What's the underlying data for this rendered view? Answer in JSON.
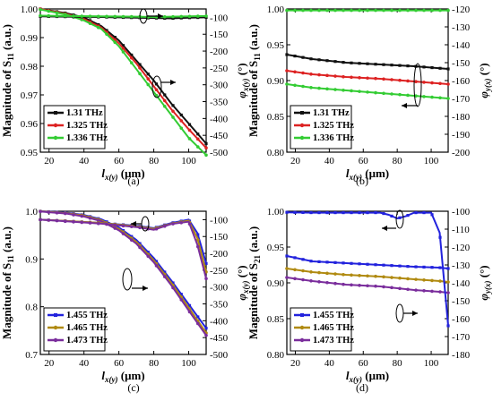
{
  "colors": {
    "black": "#111111",
    "red": "#dd2222",
    "green": "#33cc33",
    "blue": "#2222dd",
    "olive": "#b08a10",
    "purple": "#7a2d9c",
    "text": "#000000"
  },
  "chart_data": [
    {
      "panel": "(a)",
      "type": "line",
      "xlabel_parts": [
        "l",
        "x(y)",
        " (μm)"
      ],
      "ylabel_parts": [
        "Magnitude of S",
        "11",
        " (a.u.)"
      ],
      "y2label_parts": [
        "φ",
        "x(y)",
        " (°)"
      ],
      "xlim": [
        15,
        110
      ],
      "ylim": [
        0.95,
        1.0
      ],
      "y2lim": [
        -500,
        -75
      ],
      "xticks": [
        "20",
        "40",
        "60",
        "80",
        "100"
      ],
      "yticks": [
        "0.95",
        "0.96",
        "0.97",
        "0.98",
        "0.99",
        "1.00"
      ],
      "y2ticks": [
        "-100",
        "-150",
        "-200",
        "-250",
        "-300",
        "-350",
        "-400",
        "-450",
        "-500"
      ],
      "legend": {
        "position": "bottom-left"
      },
      "series": [
        {
          "name": "1.31 THz",
          "color": "black",
          "axis": "left",
          "x": [
            15,
            20,
            30,
            40,
            50,
            60,
            70,
            80,
            90,
            100,
            110
          ],
          "y": [
            1.0,
            0.9995,
            0.9985,
            0.997,
            0.994,
            0.989,
            0.982,
            0.975,
            0.967,
            0.96,
            0.953
          ]
        },
        {
          "name": "1.325 THz",
          "color": "red",
          "axis": "left",
          "x": [
            15,
            20,
            30,
            40,
            50,
            60,
            70,
            80,
            90,
            100,
            110
          ],
          "y": [
            1.0,
            0.9994,
            0.9982,
            0.9965,
            0.9935,
            0.988,
            0.981,
            0.973,
            0.965,
            0.958,
            0.9515
          ]
        },
        {
          "name": "1.336 THz",
          "color": "green",
          "axis": "left",
          "x": [
            15,
            20,
            30,
            40,
            50,
            60,
            70,
            80,
            90,
            100,
            110
          ],
          "y": [
            0.9998,
            0.9992,
            0.998,
            0.996,
            0.993,
            0.987,
            0.979,
            0.971,
            0.963,
            0.955,
            0.949
          ]
        },
        {
          "name": "",
          "color": "black",
          "axis": "right",
          "x": [
            15,
            30,
            50,
            70,
            80,
            90,
            100,
            110
          ],
          "y": [
            -97,
            -98,
            -99,
            -101,
            -102,
            -103,
            -101,
            -100
          ]
        },
        {
          "name": "",
          "color": "green",
          "axis": "right",
          "x": [
            15,
            30,
            50,
            70,
            80,
            90,
            100,
            110
          ],
          "y": [
            -95,
            -96,
            -97,
            -98,
            -99,
            -98,
            -97,
            -96
          ]
        }
      ]
    },
    {
      "panel": "(b)",
      "type": "line",
      "xlabel_parts": [
        "l",
        "x(y)",
        " (μm)"
      ],
      "ylabel_parts": [
        "Magnitude of S",
        "11",
        " (a.u.)"
      ],
      "y2label_parts": [
        "φ",
        "y(x)",
        " (°)"
      ],
      "xlim": [
        15,
        110
      ],
      "ylim": [
        0.8,
        1.0
      ],
      "y2lim": [
        -200,
        -120
      ],
      "xticks": [
        "20",
        "40",
        "60",
        "80",
        "100"
      ],
      "yticks": [
        "0.80",
        "0.85",
        "0.90",
        "0.95",
        "1.00"
      ],
      "y2ticks": [
        "-120",
        "-130",
        "-140",
        "-150",
        "-160",
        "-170",
        "-180",
        "-190",
        "-200"
      ],
      "legend": {
        "position": "bottom-left"
      },
      "series": [
        {
          "name": "1.31 THz",
          "color": "black",
          "axis": "right",
          "x": [
            15,
            30,
            50,
            70,
            90,
            110
          ],
          "y": [
            -145.5,
            -148,
            -150,
            -151,
            -152,
            -153.5
          ]
        },
        {
          "name": "1.325 THz",
          "color": "red",
          "axis": "right",
          "x": [
            15,
            30,
            50,
            70,
            90,
            110
          ],
          "y": [
            -154.5,
            -156.5,
            -158,
            -159,
            -160.5,
            -162
          ]
        },
        {
          "name": "1.336 THz",
          "color": "green",
          "axis": "right",
          "x": [
            15,
            30,
            50,
            70,
            90,
            110
          ],
          "y": [
            -162,
            -164,
            -165.5,
            -167,
            -168.5,
            -170
          ]
        },
        {
          "name": "",
          "color": "green",
          "axis": "left",
          "x": [
            15,
            110
          ],
          "y": [
            0.998,
            0.998
          ]
        }
      ]
    },
    {
      "panel": "(c)",
      "type": "line",
      "xlabel_parts": [
        "l",
        "x(y)",
        " (μm)"
      ],
      "ylabel_parts": [
        "Magnitude of S",
        "11",
        " (a.u.)"
      ],
      "y2label_parts": [
        "φ",
        "x(y)",
        " (°)"
      ],
      "xlim": [
        15,
        110
      ],
      "ylim": [
        0.7,
        1.0
      ],
      "y2lim": [
        -500,
        -75
      ],
      "xticks": [
        "20",
        "40",
        "60",
        "80",
        "100"
      ],
      "yticks": [
        "0.7",
        "0.8",
        "0.9",
        "1.0"
      ],
      "y2ticks": [
        "-100",
        "-150",
        "-200",
        "-250",
        "-300",
        "-350",
        "-400",
        "-450",
        "-500"
      ],
      "legend": {
        "position": "bottom-left"
      },
      "series": [
        {
          "name": "1.455 THz",
          "color": "blue",
          "axis": "left",
          "x": [
            15,
            20,
            30,
            40,
            50,
            60,
            70,
            80,
            90,
            100,
            110
          ],
          "y": [
            1.0,
            0.999,
            0.997,
            0.992,
            0.983,
            0.966,
            0.94,
            0.902,
            0.855,
            0.805,
            0.755
          ]
        },
        {
          "name": "1.465 THz",
          "color": "olive",
          "axis": "left",
          "x": [
            15,
            20,
            30,
            40,
            50,
            60,
            70,
            80,
            90,
            100,
            110
          ],
          "y": [
            1.0,
            0.9985,
            0.996,
            0.991,
            0.981,
            0.963,
            0.936,
            0.897,
            0.85,
            0.798,
            0.745
          ]
        },
        {
          "name": "1.473 THz",
          "color": "purple",
          "axis": "left",
          "x": [
            15,
            20,
            30,
            40,
            50,
            60,
            70,
            80,
            90,
            100,
            110
          ],
          "y": [
            0.9995,
            0.998,
            0.995,
            0.989,
            0.979,
            0.96,
            0.932,
            0.893,
            0.845,
            0.792,
            0.74
          ]
        },
        {
          "name": "",
          "color": "blue",
          "axis": "right",
          "x": [
            15,
            30,
            50,
            70,
            80,
            90,
            100,
            105,
            110
          ],
          "y": [
            -100,
            -104,
            -110,
            -118,
            -125,
            -110,
            -100,
            -140,
            -230
          ]
        },
        {
          "name": "",
          "color": "olive",
          "axis": "right",
          "x": [
            15,
            30,
            50,
            70,
            80,
            90,
            100,
            105,
            110
          ],
          "y": [
            -100,
            -104,
            -110,
            -120,
            -127,
            -112,
            -103,
            -155,
            -255
          ]
        },
        {
          "name": "",
          "color": "purple",
          "axis": "right",
          "x": [
            15,
            30,
            50,
            70,
            80,
            90,
            100,
            105,
            110
          ],
          "y": [
            -100,
            -105,
            -112,
            -122,
            -130,
            -113,
            -106,
            -175,
            -275
          ]
        }
      ]
    },
    {
      "panel": "(d)",
      "type": "line",
      "xlabel_parts": [
        "l",
        "x(y)",
        " (μm)"
      ],
      "ylabel_parts": [
        "Magnitude of S",
        "21",
        " (a.u.)"
      ],
      "y2label_parts": [
        "φ",
        "y(x)",
        " (°)"
      ],
      "xlim": [
        15,
        110
      ],
      "ylim": [
        0.8,
        1.0
      ],
      "y2lim": [
        -180,
        -100
      ],
      "xticks": [
        "20",
        "40",
        "60",
        "80",
        "100"
      ],
      "yticks": [
        "0.80",
        "0.85",
        "0.90",
        "0.95",
        "1.00"
      ],
      "y2ticks": [
        "-100",
        "-110",
        "-120",
        "-130",
        "-140",
        "-150",
        "-160",
        "-170",
        "-180"
      ],
      "legend": {
        "position": "bottom-left"
      },
      "series": [
        {
          "name": "1.455 THz",
          "color": "blue",
          "axis": "right",
          "x": [
            15,
            30,
            50,
            70,
            90,
            105,
            110
          ],
          "y": [
            -125,
            -128,
            -129,
            -130,
            -131,
            -131.5,
            -132
          ]
        },
        {
          "name": "1.465 THz",
          "color": "olive",
          "axis": "right",
          "x": [
            15,
            30,
            50,
            70,
            90,
            105,
            110
          ],
          "y": [
            -132,
            -134,
            -135.5,
            -136.5,
            -138,
            -139,
            -139.5
          ]
        },
        {
          "name": "1.473 THz",
          "color": "purple",
          "axis": "right",
          "x": [
            15,
            30,
            50,
            70,
            90,
            105,
            110
          ],
          "y": [
            -137,
            -139,
            -141,
            -142,
            -144,
            -145,
            -145.5
          ]
        },
        {
          "name": "",
          "color": "blue",
          "axis": "left",
          "x": [
            15,
            30,
            50,
            70,
            75,
            80,
            85,
            90,
            100,
            105,
            110
          ],
          "y": [
            0.9985,
            0.998,
            0.998,
            0.998,
            0.995,
            0.99,
            0.993,
            0.998,
            0.998,
            0.97,
            0.84
          ]
        }
      ]
    }
  ]
}
